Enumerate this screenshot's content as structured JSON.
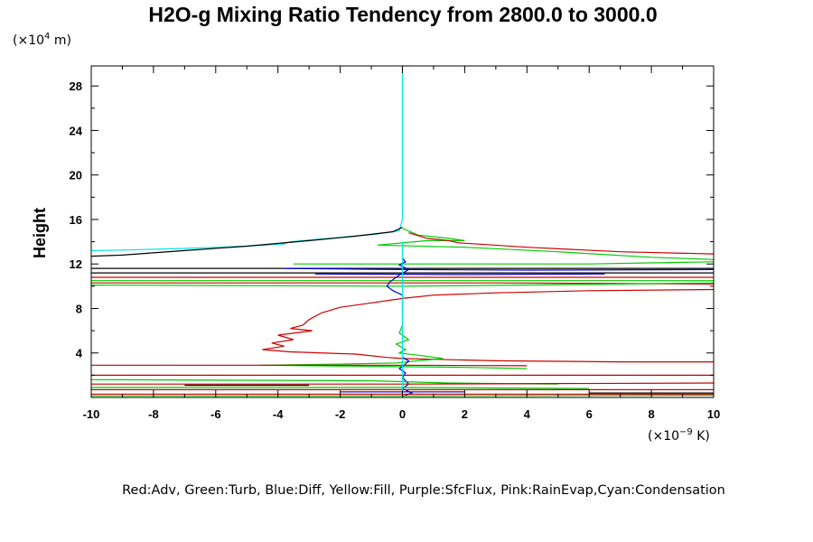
{
  "chart_data": {
    "type": "line",
    "title": "H2O-g Mixing Ratio Tendency from 2800.0 to 3000.0",
    "ylabel": "Height",
    "y_units": {
      "prefix": "(×10",
      "exp": "4",
      "suffix": " m)"
    },
    "x_units": {
      "prefix": "(×10",
      "exp": "−9",
      "suffix": " K)"
    },
    "legend_text": "Red:Adv, Green:Turb, Blue:Diff, Yellow:Fill, Purple:SfcFlux, Pink:RainEvap,Cyan:Condensation",
    "xlim": [
      -10,
      10
    ],
    "ylim": [
      0,
      29.8
    ],
    "x_ticks": [
      -10,
      -8,
      -6,
      -4,
      -2,
      0,
      2,
      4,
      6,
      8,
      10
    ],
    "x_tick_labels": [
      "-10",
      "-8",
      "-6",
      "-4",
      "-2",
      "0",
      "2",
      "4",
      "6",
      "8",
      "10"
    ],
    "y_ticks": [
      4,
      8,
      12,
      16,
      20,
      24,
      28
    ],
    "y_tick_labels": [
      "4",
      "8",
      "12",
      "16",
      "20",
      "24",
      "28"
    ],
    "grid": false,
    "series": [
      {
        "color": "#00e6e6",
        "points": [
          [
            0,
            29.8
          ],
          [
            0,
            20
          ],
          [
            0,
            16
          ],
          [
            -0.1,
            15.0
          ],
          [
            -0.8,
            14.7
          ],
          [
            -2,
            14.4
          ],
          [
            -3.6,
            14.0
          ],
          [
            -3.8,
            13.8
          ],
          [
            -5,
            13.6
          ],
          [
            -7,
            13.4
          ],
          [
            -9,
            13.25
          ],
          [
            -10,
            13.2
          ]
        ]
      },
      {
        "color": "#000000",
        "points": [
          [
            0,
            15.3
          ],
          [
            -0.3,
            14.9
          ],
          [
            -1.5,
            14.5
          ],
          [
            -3,
            14.1
          ],
          [
            -5,
            13.6
          ],
          [
            -7,
            13.2
          ],
          [
            -9,
            12.8
          ],
          [
            -10,
            12.7
          ]
        ]
      },
      {
        "color": "#00cc00",
        "points": [
          [
            0,
            15.2
          ],
          [
            0.5,
            14.6
          ],
          [
            1.5,
            14.3
          ],
          [
            2,
            14.1
          ],
          [
            0.8,
            14.1
          ],
          [
            -0.8,
            13.7
          ],
          [
            2,
            13.5
          ],
          [
            5,
            13.1
          ],
          [
            8,
            12.6
          ],
          [
            10,
            12.4
          ]
        ]
      },
      {
        "color": "#cc0000",
        "points": [
          [
            0.2,
            14.8
          ],
          [
            0.8,
            14.3
          ],
          [
            1.5,
            14.1
          ],
          [
            1.8,
            13.9
          ],
          [
            4,
            13.5
          ],
          [
            7,
            13.1
          ],
          [
            10,
            12.9
          ]
        ]
      },
      {
        "color": "#000000",
        "points": [
          [
            -10,
            11.6
          ],
          [
            10,
            11.6
          ]
        ]
      },
      {
        "color": "#000000",
        "points": [
          [
            -10,
            11.2
          ],
          [
            10,
            11.2
          ]
        ]
      },
      {
        "color": "#0000cc",
        "points": [
          [
            10,
            11.5
          ],
          [
            4,
            11.45
          ],
          [
            0,
            11.5
          ],
          [
            -3.8,
            11.6
          ]
        ]
      },
      {
        "color": "#0000cc",
        "points": [
          [
            -2.8,
            11.1
          ],
          [
            2,
            11.05
          ],
          [
            6.5,
            11.1
          ]
        ]
      },
      {
        "color": "#00cc00",
        "points": [
          [
            -3.5,
            12.0
          ],
          [
            0,
            12.0
          ],
          [
            6,
            12.0
          ],
          [
            10,
            12.2
          ]
        ]
      },
      {
        "color": "#cc0000",
        "points": [
          [
            -10,
            10.8
          ],
          [
            0,
            10.8
          ],
          [
            10,
            10.8
          ]
        ]
      },
      {
        "color": "#00cc00",
        "points": [
          [
            -10,
            10.5
          ],
          [
            0,
            10.5
          ],
          [
            10,
            10.5
          ]
        ]
      },
      {
        "color": "#cc0000",
        "points": [
          [
            -10,
            10.3
          ],
          [
            0,
            10.3
          ],
          [
            3,
            10.3
          ],
          [
            10,
            10.2
          ]
        ]
      },
      {
        "color": "#00cc00",
        "points": [
          [
            -10,
            10.1
          ],
          [
            0,
            10.0
          ],
          [
            4,
            10.1
          ],
          [
            10,
            10.3
          ]
        ]
      },
      {
        "color": "#0000cc",
        "points": [
          [
            0,
            12.5
          ],
          [
            0.1,
            12.2
          ],
          [
            -0.1,
            11.9
          ],
          [
            0.2,
            11.5
          ],
          [
            -0.1,
            11.0
          ],
          [
            -0.4,
            10.4
          ],
          [
            -0.5,
            10.0
          ],
          [
            -0.3,
            9.6
          ],
          [
            0,
            9.2
          ],
          [
            0,
            8.0
          ]
        ]
      },
      {
        "color": "#cc0000",
        "points": [
          [
            10,
            9.7
          ],
          [
            6,
            9.6
          ],
          [
            3,
            9.4
          ],
          [
            1,
            9.2
          ],
          [
            0,
            8.9
          ],
          [
            -1,
            8.5
          ],
          [
            -2,
            8.1
          ],
          [
            -2.6,
            7.6
          ],
          [
            -3,
            7.0
          ],
          [
            -3.2,
            6.5
          ],
          [
            -3.6,
            6.2
          ],
          [
            -2.9,
            6.0
          ],
          [
            -4,
            5.6
          ],
          [
            -3.5,
            5.2
          ],
          [
            -4.2,
            4.9
          ],
          [
            -3.8,
            4.6
          ],
          [
            -4.5,
            4.3
          ],
          [
            -3.6,
            4.1
          ],
          [
            -1.5,
            3.9
          ],
          [
            -0.5,
            3.6
          ],
          [
            0,
            3.5
          ],
          [
            3,
            3.3
          ],
          [
            7,
            3.2
          ],
          [
            10,
            3.2
          ]
        ]
      },
      {
        "color": "#00cc00",
        "points": [
          [
            0,
            8.0
          ],
          [
            0,
            6.5
          ],
          [
            -0.1,
            5.8
          ],
          [
            0.2,
            5.2
          ],
          [
            -0.2,
            4.8
          ],
          [
            0.1,
            4.3
          ],
          [
            -0.1,
            4.0
          ],
          [
            0.5,
            3.8
          ],
          [
            1.3,
            3.5
          ],
          [
            0.5,
            3.3
          ],
          [
            -0.2,
            3.1
          ],
          [
            -2,
            3.0
          ],
          [
            -4.6,
            2.9
          ],
          [
            -1,
            2.8
          ],
          [
            2,
            2.7
          ],
          [
            4,
            2.6
          ]
        ]
      },
      {
        "color": "#0000cc",
        "points": [
          [
            0,
            3.6
          ],
          [
            0.2,
            3.3
          ],
          [
            0.1,
            3.0
          ],
          [
            -0.1,
            2.6
          ],
          [
            0.1,
            2.2
          ],
          [
            0,
            1.8
          ],
          [
            0.2,
            1.2
          ],
          [
            0,
            0.8
          ],
          [
            0.3,
            0.4
          ],
          [
            0,
            0.1
          ]
        ]
      },
      {
        "color": "#cc0000",
        "points": [
          [
            -10,
            2.9
          ],
          [
            0,
            2.9
          ],
          [
            4,
            2.85
          ]
        ]
      },
      {
        "color": "#cc0000",
        "points": [
          [
            -10,
            2.0
          ],
          [
            0,
            2.0
          ],
          [
            10,
            2.0
          ]
        ]
      },
      {
        "color": "#00cc00",
        "points": [
          [
            -10,
            1.6
          ],
          [
            -1,
            1.5
          ],
          [
            1.5,
            1.3
          ],
          [
            5,
            1.2
          ]
        ]
      },
      {
        "color": "#cc0000",
        "points": [
          [
            -10,
            1.2
          ],
          [
            0,
            1.2
          ],
          [
            10,
            1.3
          ]
        ]
      },
      {
        "color": "#000000",
        "points": [
          [
            -7,
            1.1
          ],
          [
            -3,
            1.1
          ]
        ]
      },
      {
        "color": "#00cc00",
        "points": [
          [
            -10,
            0.9
          ],
          [
            0,
            0.9
          ],
          [
            6,
            0.8
          ]
        ]
      },
      {
        "color": "#cc0000",
        "points": [
          [
            -10,
            0.7
          ],
          [
            0,
            0.7
          ],
          [
            10,
            0.7
          ]
        ]
      },
      {
        "color": "#0000cc",
        "points": [
          [
            -2,
            0.5
          ],
          [
            2,
            0.5
          ]
        ]
      },
      {
        "color": "#000000",
        "points": [
          [
            6,
            0.4
          ],
          [
            10,
            0.4
          ]
        ]
      },
      {
        "color": "#cc0000",
        "points": [
          [
            -10,
            0.3
          ],
          [
            0,
            0.3
          ],
          [
            10,
            0.3
          ]
        ]
      },
      {
        "color": "#00cc00",
        "points": [
          [
            -10,
            0.15
          ],
          [
            0,
            0.15
          ],
          [
            10,
            0.2
          ]
        ]
      },
      {
        "color": "#00e6e6",
        "points": [
          [
            0,
            14
          ],
          [
            0,
            0
          ]
        ]
      }
    ]
  }
}
